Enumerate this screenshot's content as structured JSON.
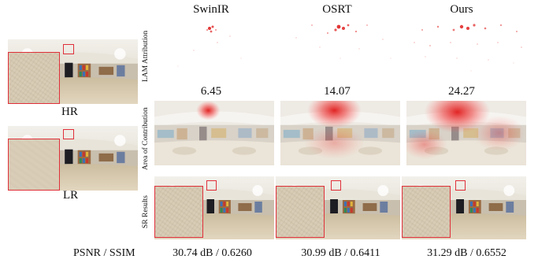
{
  "columns": [
    "SwinIR",
    "OSRT",
    "Ours"
  ],
  "row_labels": {
    "lam": "LAM Attribution",
    "area": "Area of Contribution",
    "sr": "SR Results"
  },
  "left_labels": {
    "hr": "HR",
    "lr": "LR"
  },
  "di_scores": [
    "6.45",
    "14.07",
    "24.27"
  ],
  "metrics_label": "PSNR / SSIM",
  "metrics": [
    "30.74 dB / 0.6260",
    "30.99 dB / 0.6411",
    "31.29 dB / 0.6552"
  ],
  "colors": {
    "highlight_box": "#e0303a",
    "attribution": "#e02020"
  }
}
